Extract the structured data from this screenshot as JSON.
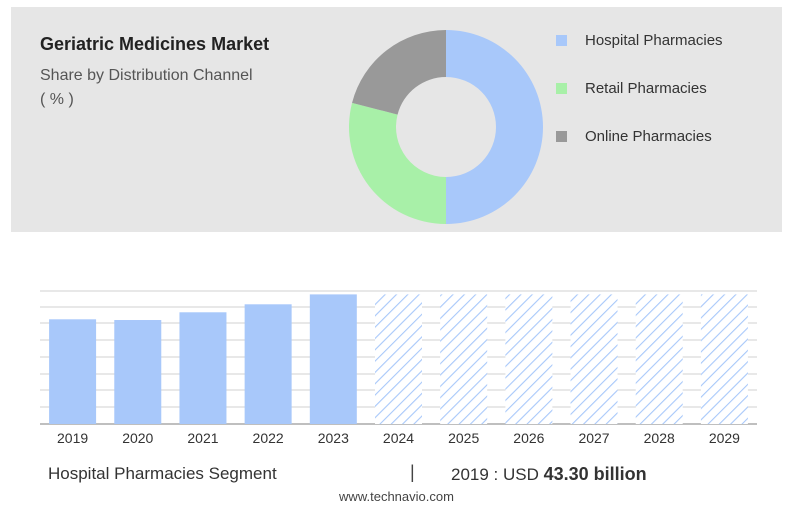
{
  "header": {
    "title": "Geriatric Medicines Market",
    "subtitle_line1": "Share by Distribution Channel",
    "subtitle_line2": "( % )"
  },
  "colors": {
    "hospital": "#a8c8fa",
    "retail": "#a8f0a8",
    "online": "#999999",
    "forecast_hatch": "#a8c8fa"
  },
  "chart_data": [
    {
      "type": "pie",
      "variant": "donut",
      "categories": [
        "Hospital Pharmacies",
        "Retail Pharmacies",
        "Online Pharmacies"
      ],
      "values": [
        50,
        29,
        21
      ],
      "legend": "right"
    },
    {
      "type": "bar",
      "categories": [
        "2019",
        "2020",
        "2021",
        "2022",
        "2023",
        "2024",
        "2025",
        "2026",
        "2027",
        "2028",
        "2029"
      ],
      "values": [
        43.3,
        43.0,
        46.2,
        49.5,
        53.6,
        53.6,
        53.6,
        53.6,
        53.6,
        53.6,
        53.6
      ],
      "forecast_from": "2024",
      "ylim": [
        0,
        55
      ],
      "grid": true
    }
  ],
  "footer": {
    "segment_label": "Hospital Pharmacies Segment",
    "separator": "|",
    "year_prefix": "2019 : USD ",
    "value": "43.30 billion",
    "website": "www.technavio.com"
  }
}
